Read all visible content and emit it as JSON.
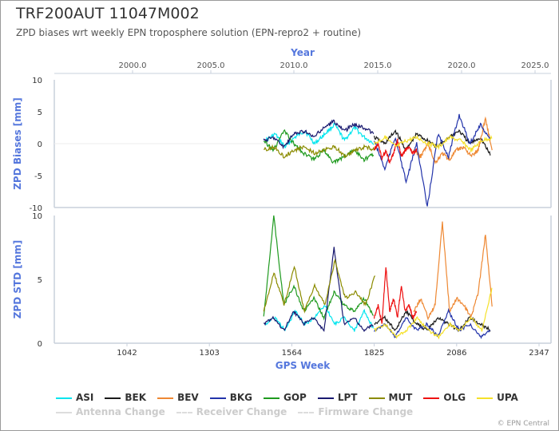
{
  "header": {
    "title": "TRF200AUT 11047M002",
    "subtitle": "ZPD biases wrt weekly EPN troposphere solution (EPN-repro2 + routine)"
  },
  "credit": "© EPN Central",
  "chart_data": [
    {
      "type": "line",
      "name": "zpd-biases",
      "ylabel": "ZPD Biases [mm]",
      "top_xlabel": "Year",
      "top_x_ticks": [
        "2000.0",
        "2005.0",
        "2010.0",
        "2015.0",
        "2020.0",
        "2025.0"
      ],
      "ylim": [
        -10,
        10
      ],
      "y_ticks": [
        "10",
        "5",
        "0",
        "-5",
        "-10"
      ],
      "series": [
        {
          "name": "ASI",
          "color": "#00e5ee",
          "x_range": [
            1480,
            1825
          ],
          "values": [
            0.5,
            1.5,
            -0.5,
            1.0,
            2.0,
            0.0,
            1.5,
            3.0,
            0.5,
            2.5,
            1.0,
            0.0
          ]
        },
        {
          "name": "BEK",
          "color": "#1a1a1a",
          "x_range": [
            1825,
            2195
          ],
          "values": [
            1.0,
            0.0,
            2.0,
            -1.0,
            1.5,
            0.5,
            -0.5,
            1.0,
            2.0,
            0.0,
            1.0,
            -2.0
          ]
        },
        {
          "name": "BEV",
          "color": "#ee8833",
          "x_range": [
            1950,
            2200
          ],
          "values": [
            -1.0,
            -2.0,
            0.0,
            -3.0,
            -1.5,
            -2.5,
            -1.0,
            -0.5,
            -2.0,
            -1.0,
            4.0,
            -1.5
          ]
        },
        {
          "name": "BKG",
          "color": "#2233aa",
          "x_range": [
            1825,
            2195
          ],
          "values": [
            0.5,
            -4.0,
            1.0,
            -6.0,
            0.0,
            -10.5,
            1.5,
            -2.0,
            4.5,
            0.0,
            3.0,
            0.5
          ]
        },
        {
          "name": "GOP",
          "color": "#1f9a1f",
          "x_range": [
            1475,
            1825
          ],
          "values": [
            0.5,
            -1.0,
            2.0,
            0.0,
            -1.5,
            -2.5,
            -1.0,
            -3.0,
            -2.0,
            -1.0,
            -2.5,
            -1.5
          ]
        },
        {
          "name": "LPT",
          "color": "#191970",
          "x_range": [
            1475,
            1825
          ],
          "values": [
            0.5,
            1.0,
            -0.5,
            1.5,
            2.0,
            1.0,
            2.5,
            3.5,
            2.0,
            3.0,
            2.5,
            1.5
          ]
        },
        {
          "name": "MUT",
          "color": "#8b8b00",
          "x_range": [
            1475,
            1830
          ],
          "values": [
            -1.0,
            -0.5,
            -2.0,
            -1.0,
            -0.5,
            -1.5,
            -1.0,
            -0.5,
            -2.0,
            -1.0,
            -0.5,
            -1.0
          ]
        },
        {
          "name": "OLG",
          "color": "#ee1111",
          "x_range": [
            1825,
            1960
          ],
          "values": [
            -1.0,
            0.0,
            -2.5,
            -1.0,
            -3.0,
            -1.5,
            0.5,
            -2.0,
            -1.0,
            -0.5,
            -1.5,
            -1.0
          ]
        },
        {
          "name": "UPA",
          "color": "#f5e12a",
          "x_range": [
            1825,
            2200
          ],
          "values": [
            0.0,
            1.0,
            -0.5,
            0.5,
            1.0,
            0.0,
            -0.5,
            1.0,
            0.5,
            -1.0,
            0.5,
            1.0
          ]
        }
      ]
    },
    {
      "type": "line",
      "name": "zpd-std",
      "ylabel": "ZPD STD [mm]",
      "xlabel": "GPS Week",
      "x_ticks": [
        1042,
        1303,
        1564,
        1825,
        2086,
        2347
      ],
      "y_ticks": [
        "10",
        "5",
        "0"
      ],
      "ylim": [
        0,
        10
      ],
      "series": [
        {
          "name": "ASI",
          "color": "#00e5ee",
          "x_range": [
            1480,
            1825
          ],
          "values": [
            1.5,
            2.0,
            1.0,
            2.5,
            1.5,
            2.0,
            3.0,
            1.5,
            2.0,
            1.0,
            2.5,
            1.0
          ]
        },
        {
          "name": "BEK",
          "color": "#1a1a1a",
          "x_range": [
            1825,
            2195
          ],
          "values": [
            1.5,
            2.0,
            1.0,
            2.5,
            1.5,
            1.0,
            2.0,
            1.5,
            1.0,
            2.0,
            1.5,
            1.0
          ]
        },
        {
          "name": "BEV",
          "color": "#ee8833",
          "x_range": [
            1950,
            2200
          ],
          "values": [
            2.5,
            3.5,
            2.0,
            3.0,
            9.5,
            2.5,
            3.5,
            3.0,
            2.0,
            4.0,
            8.5,
            2.5
          ]
        },
        {
          "name": "BKG",
          "color": "#2233aa",
          "x_range": [
            1825,
            2195
          ],
          "values": [
            1.0,
            1.5,
            0.5,
            2.0,
            1.0,
            1.5,
            0.5,
            2.5,
            1.0,
            1.5,
            0.5,
            1.0
          ]
        },
        {
          "name": "GOP",
          "color": "#1f9a1f",
          "x_range": [
            1475,
            1825
          ],
          "values": [
            2.0,
            10.0,
            3.0,
            4.5,
            2.5,
            3.5,
            2.0,
            4.0,
            3.0,
            2.5,
            3.5,
            2.0
          ]
        },
        {
          "name": "LPT",
          "color": "#191970",
          "x_range": [
            1475,
            1825
          ],
          "values": [
            1.5,
            2.0,
            1.0,
            2.5,
            1.5,
            2.0,
            1.0,
            7.5,
            1.5,
            2.0,
            1.0,
            1.5
          ]
        },
        {
          "name": "MUT",
          "color": "#8b8b00",
          "x_range": [
            1475,
            1830
          ],
          "values": [
            2.5,
            5.5,
            3.0,
            6.0,
            2.5,
            4.5,
            3.0,
            6.5,
            3.5,
            4.0,
            3.0,
            5.5
          ]
        },
        {
          "name": "OLG",
          "color": "#ee1111",
          "x_range": [
            1825,
            1960
          ],
          "values": [
            2.0,
            3.0,
            1.5,
            6.0,
            2.5,
            3.5,
            2.0,
            4.5,
            2.5,
            3.0,
            2.0,
            2.5
          ]
        },
        {
          "name": "UPA",
          "color": "#f5e12a",
          "x_range": [
            1825,
            2200
          ],
          "values": [
            1.0,
            1.5,
            0.5,
            1.0,
            2.0,
            1.0,
            0.5,
            1.5,
            1.0,
            2.0,
            1.0,
            4.5
          ]
        }
      ]
    }
  ],
  "legend": {
    "stations": [
      {
        "label": "ASI",
        "color": "#00e5ee"
      },
      {
        "label": "BEK",
        "color": "#1a1a1a"
      },
      {
        "label": "BEV",
        "color": "#ee8833"
      },
      {
        "label": "BKG",
        "color": "#2233aa"
      },
      {
        "label": "GOP",
        "color": "#1f9a1f"
      },
      {
        "label": "LPT",
        "color": "#191970"
      },
      {
        "label": "MUT",
        "color": "#8b8b00"
      },
      {
        "label": "OLG",
        "color": "#ee1111"
      },
      {
        "label": "UPA",
        "color": "#f5e12a"
      }
    ],
    "changes": [
      {
        "label": "Antenna Change"
      },
      {
        "label": "Receiver Change"
      },
      {
        "label": "Firmware Change"
      }
    ]
  }
}
